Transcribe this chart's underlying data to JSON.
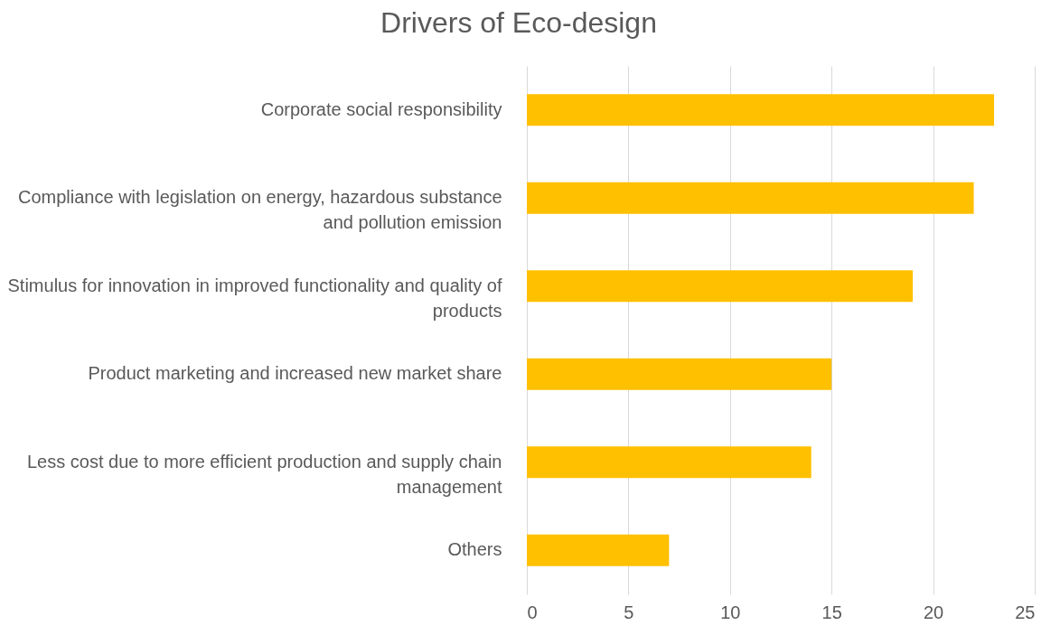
{
  "chart_data": {
    "type": "bar",
    "orientation": "horizontal",
    "title": "Drivers of Eco-design",
    "categories": [
      "Corporate social responsibility",
      "Compliance with legislation on energy, hazardous substance and pollution emission",
      "Stimulus for innovation in improved functionality and quality of products",
      "Product marketing and increased new market share",
      "Less cost due to more efficient production and supply chain management",
      "Others"
    ],
    "values": [
      23,
      22,
      19,
      15,
      14,
      7
    ],
    "color": "#ffc000",
    "xlim": [
      0,
      25
    ],
    "xticks": [
      0,
      5,
      10,
      15,
      20,
      25
    ],
    "grid": "x"
  }
}
